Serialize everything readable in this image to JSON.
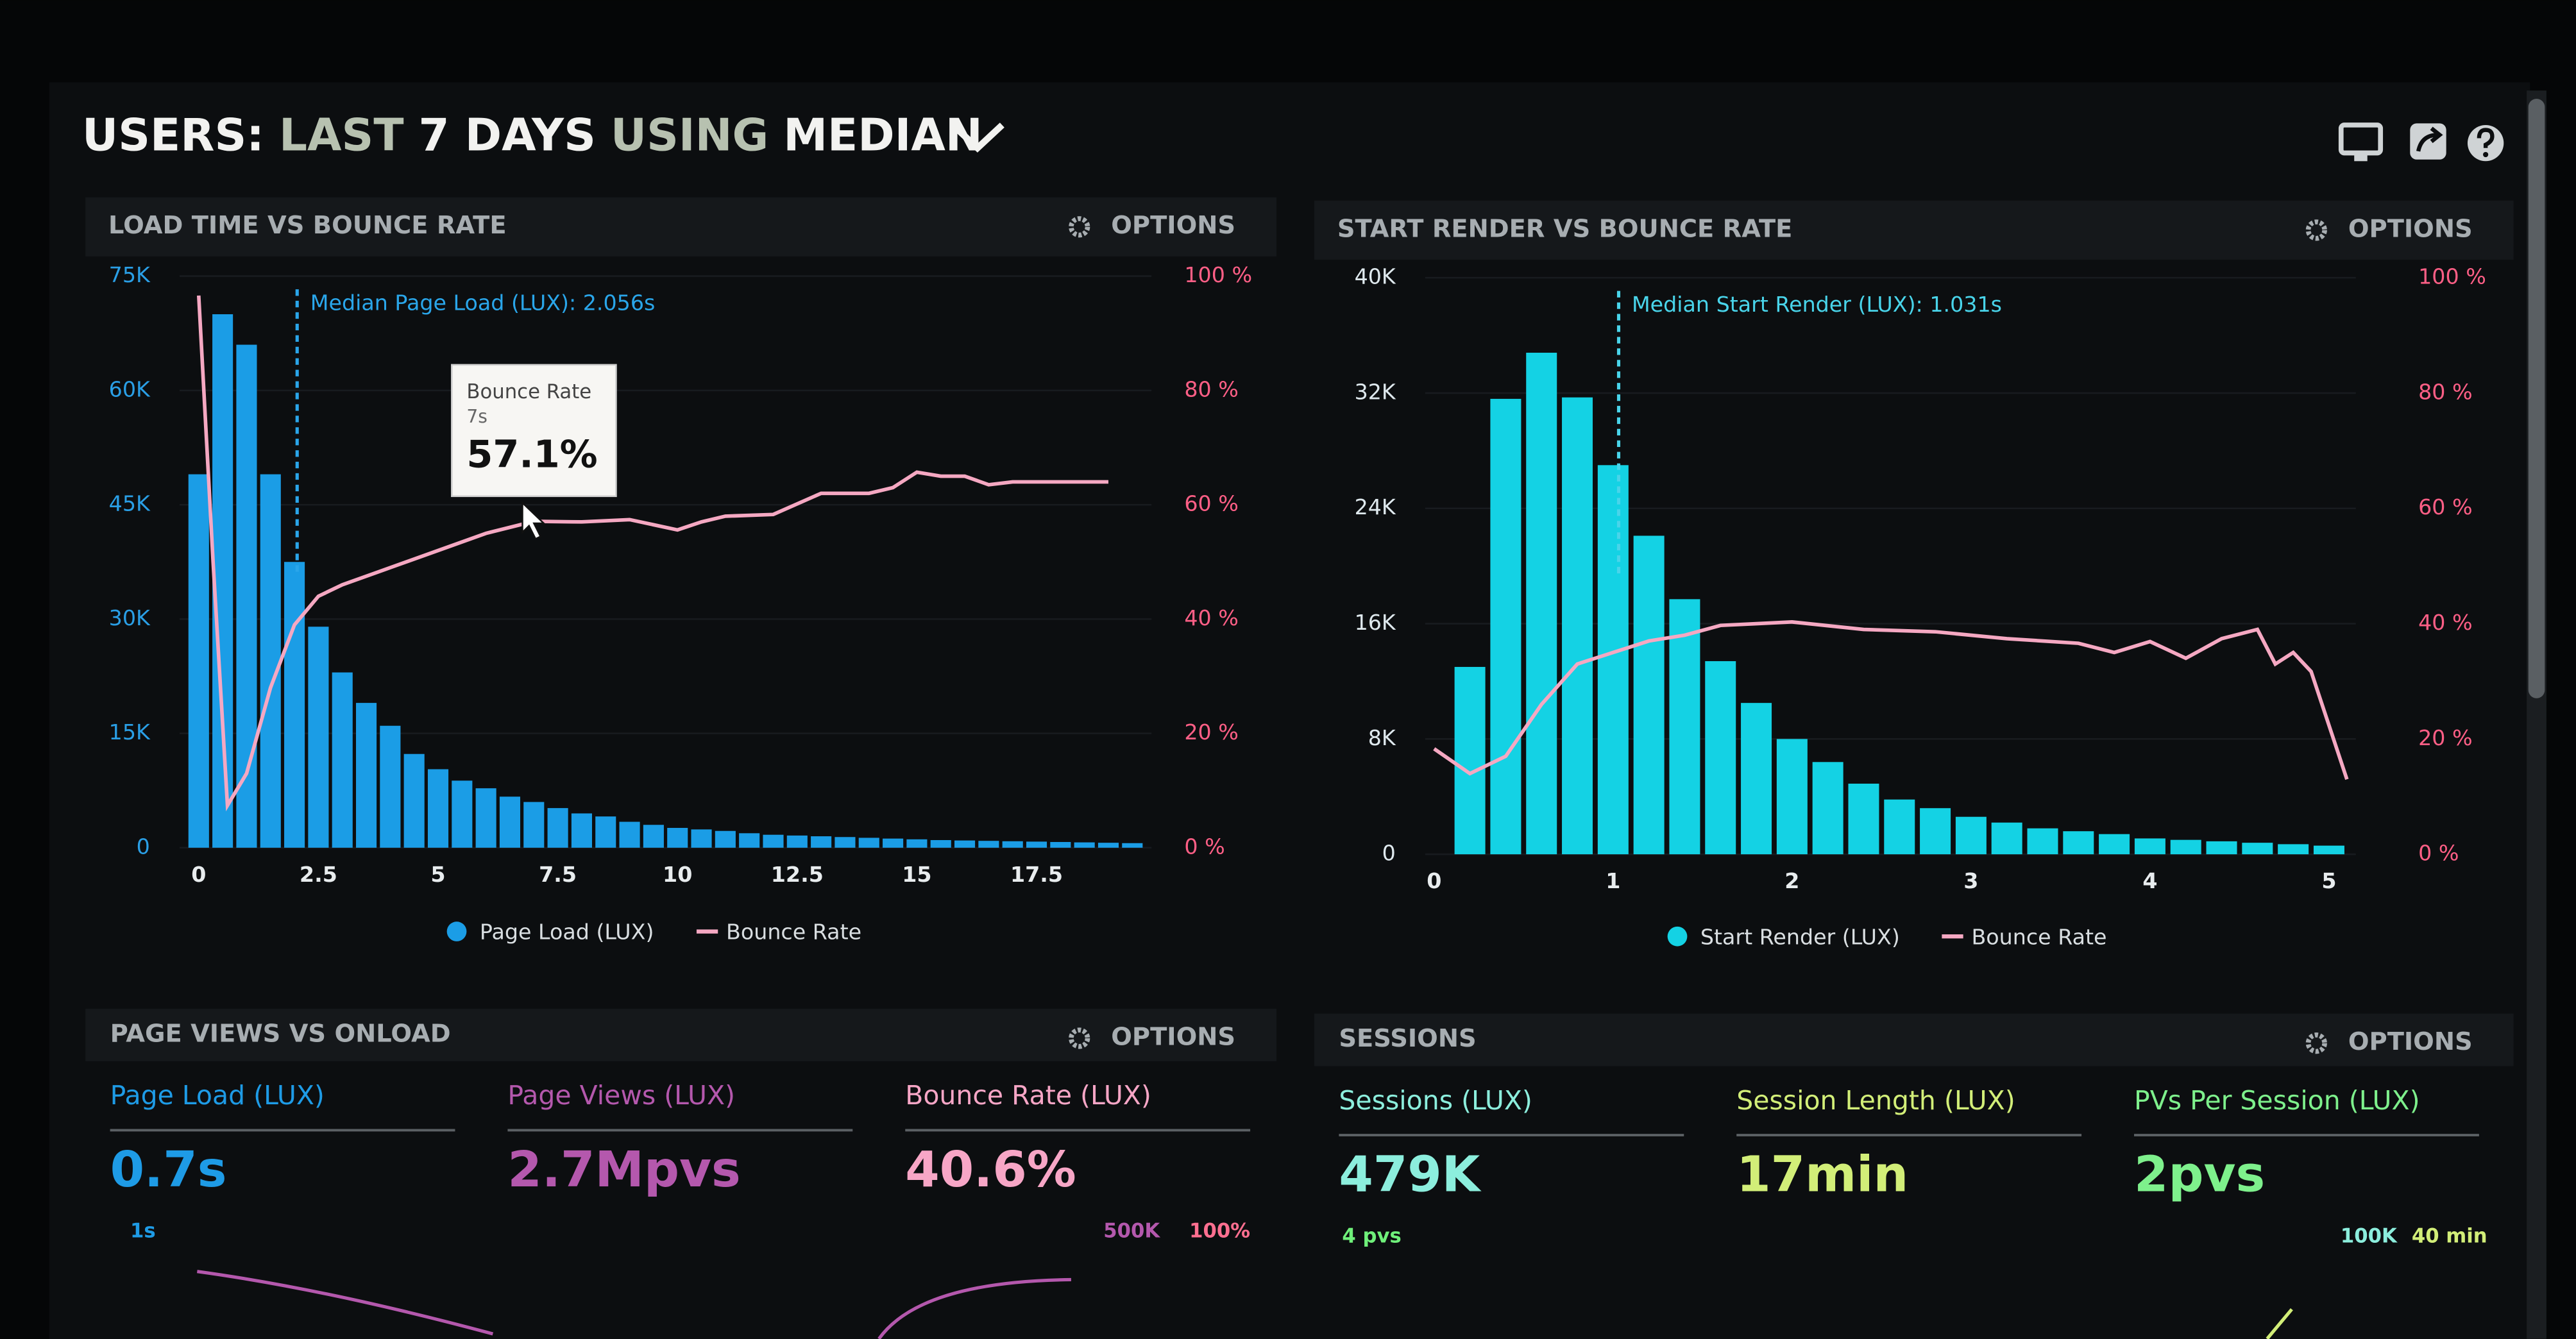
{
  "header": {
    "title_parts": [
      {
        "text": "USERS:",
        "color": "#f2f2f0"
      },
      {
        "text": "LAST",
        "color": "#b7c1b0"
      },
      {
        "text": "7 DAYS",
        "color": "#f2f2f0"
      },
      {
        "text": "USING",
        "color": "#b7c1b0"
      },
      {
        "text": "MEDIAN",
        "color": "#f2f2f0"
      }
    ]
  },
  "chart_data": [
    {
      "type": "bar",
      "title": "LOAD TIME VS BOUNCE RATE",
      "options": "OPTIONS",
      "x": [
        0,
        0.5,
        1,
        1.5,
        2,
        2.5,
        3,
        3.5,
        4,
        4.5,
        5,
        5.5,
        6,
        6.5,
        7,
        7.5,
        8,
        8.5,
        9,
        9.5,
        10,
        10.5,
        11,
        11.5,
        12,
        12.5,
        13,
        13.5,
        14,
        14.5,
        15,
        15.5,
        16,
        16.5,
        17,
        17.5,
        18,
        18.5,
        19,
        19.5
      ],
      "series": [
        {
          "name": "Page Load (LUX)",
          "color": "#1b9de6",
          "values": [
            49000,
            70000,
            66000,
            49000,
            37500,
            29000,
            23000,
            19000,
            16000,
            12300,
            10300,
            8800,
            7800,
            6700,
            6000,
            5200,
            4500,
            4100,
            3400,
            3000,
            2600,
            2400,
            2200,
            1900,
            1700,
            1600,
            1500,
            1400,
            1300,
            1200,
            1100,
            1000,
            950,
            900,
            850,
            800,
            750,
            700,
            650,
            600
          ]
        },
        {
          "name": "Bounce Rate",
          "color": "#f5a8c2",
          "type": "line",
          "axis": "y2",
          "x": [
            0,
            0.3,
            0.6,
            1,
            1.5,
            2,
            2.5,
            3,
            4,
            5,
            6,
            7,
            8,
            9,
            10,
            10.5,
            11,
            12,
            13,
            14,
            14.5,
            15,
            15.5,
            16,
            16.5,
            17,
            18,
            19
          ],
          "values": [
            96.6,
            50,
            7.4,
            13,
            28,
            39,
            44,
            46,
            49,
            52,
            55,
            57.1,
            57,
            57.4,
            55.6,
            57,
            58,
            58.3,
            62,
            62,
            63,
            65.7,
            65,
            65,
            63.5,
            64,
            64,
            64
          ]
        }
      ],
      "xlim": [
        -0.4,
        19.9
      ],
      "xticks": [
        0,
        2.5,
        5,
        7.5,
        10,
        12.5,
        15,
        17.5
      ],
      "ylim": [
        0,
        75000
      ],
      "yticks": [
        0,
        {
          "value": 15000,
          "label": "15K"
        },
        {
          "value": 30000,
          "label": "30K"
        },
        {
          "value": 45000,
          "label": "45K"
        },
        {
          "value": 60000,
          "label": "60K"
        },
        {
          "value": 75000,
          "label": "75K"
        }
      ],
      "y2lim": [
        0,
        100
      ],
      "y2ticks": [
        {
          "value": 0,
          "label": "0 %"
        },
        {
          "value": 20,
          "label": "20 %"
        },
        {
          "value": 40,
          "label": "40 %"
        },
        {
          "value": 60,
          "label": "60 %"
        },
        {
          "value": 80,
          "label": "80 %"
        },
        {
          "value": 100,
          "label": "100 %"
        }
      ],
      "ytick_color": "#2a9fe6",
      "y2tick_color": "#ff5f86",
      "grid": true,
      "annotation": {
        "text": "Median Page Load (LUX): 2.056s",
        "x": 2.056,
        "color": "#2aa6ea"
      },
      "tooltip": {
        "title": "Bounce Rate",
        "subtitle": "7s",
        "value": "57.1%"
      }
    },
    {
      "type": "bar",
      "title": "START RENDER VS BOUNCE RATE",
      "options": "OPTIONS",
      "x": [
        0.2,
        0.4,
        0.6,
        0.8,
        1,
        1.2,
        1.4,
        1.6,
        1.8,
        2,
        2.2,
        2.4,
        2.6,
        2.8,
        3,
        3.2,
        3.4,
        3.6,
        3.8,
        4,
        4.2,
        4.4,
        4.6,
        4.8,
        5
      ],
      "series": [
        {
          "name": "Start Render (LUX)",
          "color": "#14d2e4",
          "values": [
            13000,
            31600,
            34800,
            31700,
            27000,
            22100,
            17700,
            13400,
            10500,
            8000,
            6400,
            4900,
            3800,
            3200,
            2600,
            2200,
            1800,
            1600,
            1400,
            1100,
            1000,
            900,
            800,
            700,
            600
          ]
        },
        {
          "name": "Bounce Rate",
          "color": "#f5a8c2",
          "type": "line",
          "axis": "y2",
          "x": [
            0,
            0.2,
            0.4,
            0.6,
            0.8,
            1,
            1.2,
            1.4,
            1.6,
            1.8,
            2,
            2.4,
            2.8,
            3.2,
            3.6,
            3.8,
            4,
            4.2,
            4.4,
            4.6,
            4.7,
            4.8,
            4.9,
            5.1
          ],
          "values": [
            18.3,
            14,
            17,
            26,
            33,
            35,
            37,
            38,
            39.7,
            40,
            40.3,
            39,
            38.6,
            37.4,
            36.6,
            35,
            36.9,
            34,
            37.4,
            39,
            33,
            35,
            31.7,
            13
          ]
        }
      ],
      "xlim": [
        -0.05,
        5.15
      ],
      "xticks": [
        0,
        1,
        2,
        3,
        4,
        5
      ],
      "ylim": [
        0,
        40000
      ],
      "yticks": [
        0,
        {
          "value": 8000,
          "label": "8K"
        },
        {
          "value": 16000,
          "label": "16K"
        },
        {
          "value": 24000,
          "label": "24K"
        },
        {
          "value": 32000,
          "label": "32K"
        },
        {
          "value": 40000,
          "label": "40K"
        }
      ],
      "y2lim": [
        0,
        100
      ],
      "y2ticks": [
        {
          "value": 0,
          "label": "0 %"
        },
        {
          "value": 20,
          "label": "20 %"
        },
        {
          "value": 40,
          "label": "40 %"
        },
        {
          "value": 60,
          "label": "60 %"
        },
        {
          "value": 80,
          "label": "80 %"
        },
        {
          "value": 100,
          "label": "100 %"
        }
      ],
      "ytick_color": "#dfe9ee",
      "y2tick_color": "#ff5f86",
      "grid": true,
      "annotation": {
        "text": "Median Start Render (LUX): 1.031s",
        "x": 1.031,
        "color": "#49d4ea"
      }
    }
  ],
  "panels": [
    {
      "title": "PAGE VIEWS VS ONLOAD",
      "options": "OPTIONS",
      "metrics": [
        {
          "label": "Page Load (LUX)",
          "value": "0.7s",
          "color": "#1e9be6"
        },
        {
          "label": "Page Views (LUX)",
          "value": "2.7Mpvs",
          "color": "#b458ad"
        },
        {
          "label": "Bounce Rate (LUX)",
          "value": "40.6%",
          "color": "#f7a6c6"
        }
      ],
      "axis_labels": [
        {
          "text": "1s",
          "color": "#1e9be6"
        },
        {
          "text": "500K",
          "color": "#b458ad"
        },
        {
          "text": "100%",
          "color": "#ff6f90"
        }
      ]
    },
    {
      "title": "SESSIONS",
      "options": "OPTIONS",
      "metrics": [
        {
          "label": "Sessions (LUX)",
          "value": "479K",
          "color": "#8ceedd"
        },
        {
          "label": "Session Length (LUX)",
          "value": "17min",
          "color": "#d2ee78"
        },
        {
          "label": "PVs Per Session (LUX)",
          "value": "2pvs",
          "color": "#7ef08c"
        }
      ],
      "axis_labels": [
        {
          "text": "4 pvs",
          "color": "#6ff07a"
        },
        {
          "text": "100K",
          "color": "#8ceedd"
        },
        {
          "text": "40 min",
          "color": "#d2ee78"
        }
      ]
    }
  ]
}
